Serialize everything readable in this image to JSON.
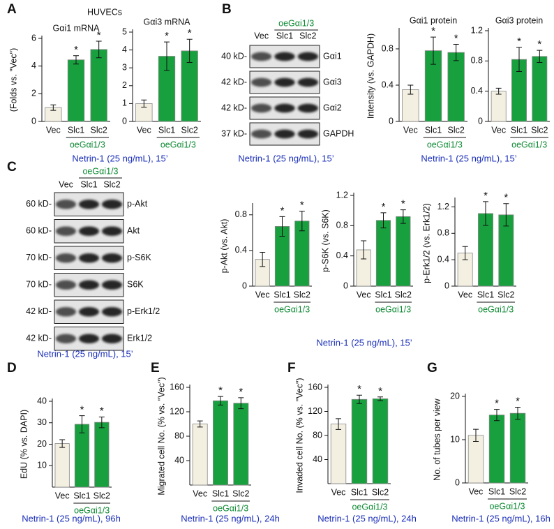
{
  "panels": [
    {
      "letter": "A",
      "header": "HUVECs",
      "condition": "Netrin-1 (25 ng/mL), 15’"
    },
    {
      "letter": "B",
      "condition": "Netrin-1 (25 ng/mL), 15’"
    },
    {
      "letter": "C",
      "condition": "Netrin-1 (25 ng/mL), 15’"
    },
    {
      "letter": "D",
      "condition": "Netrin-1 (25 ng/mL), 96h"
    },
    {
      "letter": "E",
      "condition": "Netrin-1 (25 ng/mL), 24h"
    },
    {
      "letter": "F",
      "condition": "Netrin-1 (25 ng/mL), 24h"
    },
    {
      "letter": "G",
      "condition": "Netrin-1 (25 ng/mL), 16h"
    }
  ],
  "blots": [
    {
      "group_label": "oeGαi1/3",
      "lanes": [
        "Vec",
        "Slc1",
        "Slc2"
      ],
      "condition": "Netrin-1 (25 ng/mL), 15’",
      "rows": [
        {
          "size": "40 kD-",
          "protein": "Gαi1"
        },
        {
          "size": "42 kD-",
          "protein": "Gαi3"
        },
        {
          "size": "42 kD-",
          "protein": "Gαi2"
        },
        {
          "size": "37 kD-",
          "protein": "GAPDH"
        }
      ]
    },
    {
      "group_label": "oeGαi1/3",
      "lanes": [
        "Vec",
        "Slc1",
        "Slc2"
      ],
      "condition": "Netrin-1 (25 ng/mL), 15’",
      "rows": [
        {
          "size": "60 kD-",
          "protein": "p-Akt"
        },
        {
          "size": "60 kD-",
          "protein": "Akt"
        },
        {
          "size": "70 kD-",
          "protein": "p-S6K"
        },
        {
          "size": "70 kD-",
          "protein": "S6K"
        },
        {
          "size": "42 kD-",
          "protein": "p-Erk1/2"
        },
        {
          "size": "42 kD-",
          "protein": "Erk1/2"
        }
      ]
    }
  ],
  "chart_data": [
    {
      "type": "bar",
      "title": "Gαi1 mRNA",
      "ylabel": "(Folds vs. \"Vec\")",
      "categories": [
        "Vec",
        "Slc1",
        "Slc2"
      ],
      "group_label": "oeGαi1/3",
      "values": [
        1.0,
        4.45,
        5.2
      ],
      "errors": [
        0.2,
        0.3,
        0.6
      ],
      "significance": [
        null,
        "*",
        "*"
      ],
      "colors": [
        "#f3f0e2",
        "#18a03f",
        "#18a03f"
      ],
      "ylim": [
        0,
        6
      ],
      "yticks": [
        0,
        2,
        4,
        6
      ]
    },
    {
      "type": "bar",
      "title": "Gαi3 mRNA",
      "categories": [
        "Vec",
        "Slc1",
        "Slc2"
      ],
      "group_label": "oeGαi1/3",
      "values": [
        1.0,
        3.65,
        3.95
      ],
      "errors": [
        0.2,
        0.8,
        0.65
      ],
      "significance": [
        null,
        "*",
        "*"
      ],
      "colors": [
        "#f3f0e2",
        "#18a03f",
        "#18a03f"
      ],
      "ylim": [
        0,
        5
      ],
      "yticks": [
        0,
        1,
        2,
        3,
        4,
        5
      ]
    },
    {
      "type": "bar",
      "title": "Gαi1 protein",
      "ylabel": "Intensity (vs. GAPDH)",
      "categories": [
        "Vec",
        "Slc1",
        "Slc2"
      ],
      "group_label": "oeGαi1/3",
      "values": [
        0.35,
        0.78,
        0.76
      ],
      "errors": [
        0.05,
        0.15,
        0.09
      ],
      "significance": [
        null,
        "*",
        "*"
      ],
      "colors": [
        "#f3f0e2",
        "#18a03f",
        "#18a03f"
      ],
      "ylim": [
        0,
        1.0
      ],
      "yticks": [
        0,
        0.4,
        0.8
      ]
    },
    {
      "type": "bar",
      "title": "Gαi3 protein",
      "categories": [
        "Vec",
        "Slc1",
        "Slc2"
      ],
      "group_label": "oeGαi1/3",
      "values": [
        0.4,
        0.82,
        0.86
      ],
      "errors": [
        0.04,
        0.16,
        0.08
      ],
      "significance": [
        null,
        "*",
        "*"
      ],
      "colors": [
        "#f3f0e2",
        "#18a03f",
        "#18a03f"
      ],
      "ylim": [
        0,
        1.2
      ],
      "yticks": [
        0,
        0.4,
        0.8,
        1.2
      ]
    },
    {
      "type": "bar",
      "ylabel": "p-Akt (vs. Akt)",
      "categories": [
        "Vec",
        "Slc1",
        "Slc2"
      ],
      "group_label": "oeGαi1/3",
      "values": [
        0.3,
        0.67,
        0.73
      ],
      "errors": [
        0.08,
        0.11,
        0.11
      ],
      "significance": [
        null,
        "*",
        "*"
      ],
      "colors": [
        "#f3f0e2",
        "#18a03f",
        "#18a03f"
      ],
      "ylim": [
        0,
        0.9
      ],
      "yticks": [
        0,
        0.4,
        0.8
      ]
    },
    {
      "type": "bar",
      "ylabel": "p-S6K (vs. S6K)",
      "categories": [
        "Vec",
        "Slc1",
        "Slc2"
      ],
      "group_label": "oeGαi1/3",
      "values": [
        0.48,
        0.87,
        0.92
      ],
      "errors": [
        0.12,
        0.1,
        0.09
      ],
      "significance": [
        null,
        "*",
        "*"
      ],
      "colors": [
        "#f3f0e2",
        "#18a03f",
        "#18a03f"
      ],
      "ylim": [
        0,
        1.2
      ],
      "yticks": [
        0,
        0.4,
        0.8,
        1.2
      ]
    },
    {
      "type": "bar",
      "ylabel": "p-Erk1/2 (vs. Erk1/2)",
      "categories": [
        "Vec",
        "Slc1",
        "Slc2"
      ],
      "group_label": "oeGαi1/3",
      "values": [
        0.5,
        1.1,
        1.08
      ],
      "errors": [
        0.1,
        0.18,
        0.17
      ],
      "significance": [
        null,
        "*",
        "*"
      ],
      "colors": [
        "#f3f0e2",
        "#18a03f",
        "#18a03f"
      ],
      "ylim": [
        0,
        1.3
      ],
      "yticks": [
        0,
        0.4,
        0.8,
        1.2
      ]
    },
    {
      "type": "bar",
      "ylabel": "EdU (% vs. DAPI)",
      "categories": [
        "Vec",
        "Slc1",
        "Slc2"
      ],
      "group_label": "oeGαi1/3",
      "values": [
        20.3,
        29.3,
        30.2
      ],
      "errors": [
        1.8,
        4.0,
        2.5
      ],
      "significance": [
        null,
        "*",
        "*"
      ],
      "colors": [
        "#f3f0e2",
        "#18a03f",
        "#18a03f"
      ],
      "ylim": [
        0,
        40
      ],
      "yticks": [
        10,
        20,
        30,
        40
      ]
    },
    {
      "type": "bar",
      "ylabel": "Migrated cell No. (% vs. \"Vec\")",
      "categories": [
        "Vec",
        "Slc1",
        "Slc2"
      ],
      "group_label": "oeGαi1/3",
      "values": [
        100,
        138,
        134
      ],
      "errors": [
        5,
        7,
        9
      ],
      "significance": [
        null,
        "*",
        "*"
      ],
      "colors": [
        "#f3f0e2",
        "#18a03f",
        "#18a03f"
      ],
      "ylim": [
        0,
        160
      ],
      "yticks": [
        40,
        80,
        120,
        160
      ]
    },
    {
      "type": "bar",
      "ylabel": "Invaded cell No. (% vs. \"Vec\")",
      "categories": [
        "Vec",
        "Slc1",
        "Slc2"
      ],
      "group_label": "oeGαi1/3",
      "values": [
        99,
        140,
        141
      ],
      "errors": [
        9,
        7,
        3
      ],
      "significance": [
        null,
        "*",
        "*"
      ],
      "colors": [
        "#f3f0e2",
        "#18a03f",
        "#18a03f"
      ],
      "ylim": [
        0,
        160
      ],
      "yticks": [
        40,
        80,
        120,
        160
      ]
    },
    {
      "type": "bar",
      "ylabel": "No. of tubes per view",
      "categories": [
        "Vec",
        "Slc1",
        "Slc2"
      ],
      "group_label": "oeGαi1/3",
      "values": [
        11,
        15.7,
        16.1
      ],
      "errors": [
        1.4,
        1.3,
        1.4
      ],
      "significance": [
        null,
        "*",
        "*"
      ],
      "colors": [
        "#f3f0e2",
        "#18a03f",
        "#18a03f"
      ],
      "ylim": [
        0,
        20
      ],
      "yticks": [
        0,
        10,
        20
      ]
    }
  ]
}
